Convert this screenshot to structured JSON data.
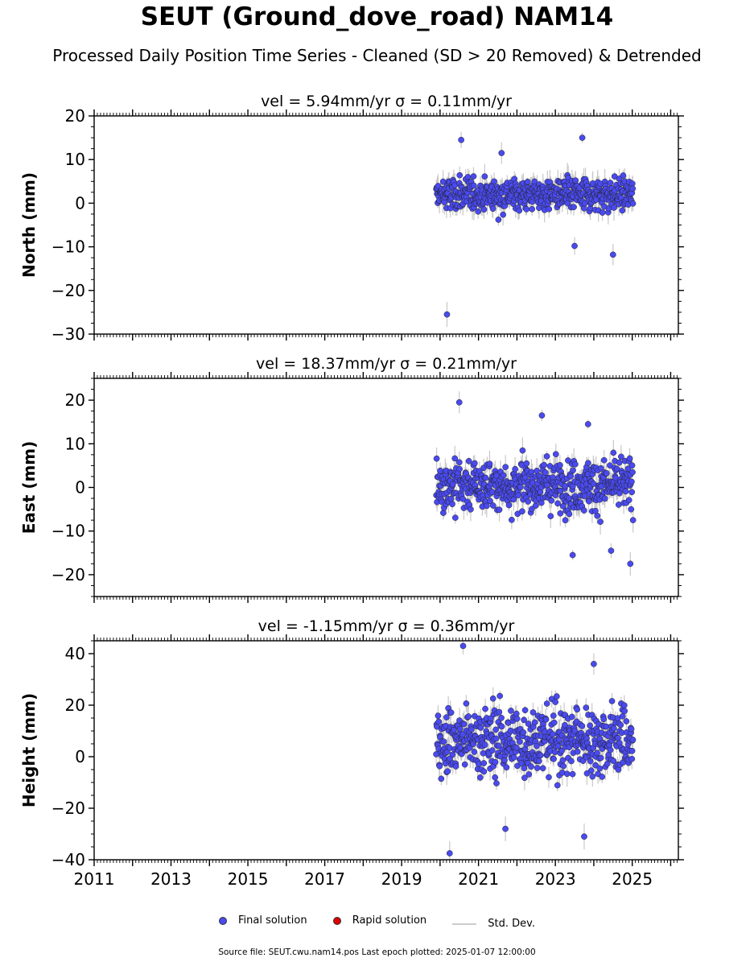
{
  "title": "SEUT (Ground_dove_road) NAM14",
  "subtitle": "Processed Daily Position Time Series - Cleaned (SD > 20 Removed) & Detrended",
  "legend": {
    "final": "Final solution",
    "rapid": "Rapid solution",
    "std": "Std. Dev."
  },
  "footer": "Source file: SEUT.cwu.nam14.pos  Last epoch plotted: 2025-01-07 12:00:00",
  "colors": {
    "final": "#4a4af0",
    "rapid": "#dd0000",
    "std": "#c8c8c8"
  },
  "chart_data": [
    {
      "type": "scatter",
      "component": "North",
      "title": "vel = 5.94mm/yr   σ = 0.11mm/yr",
      "ylabel": "North (mm)",
      "xlim": [
        2011,
        2026.2
      ],
      "ylim": [
        -30,
        20
      ],
      "yticks": [
        -30,
        -20,
        -10,
        0,
        10,
        20
      ],
      "xticks": [
        2011,
        2013,
        2015,
        2017,
        2019,
        2021,
        2023,
        2025
      ],
      "data_span": [
        2019.9,
        2025.02
      ],
      "typical_range": [
        -6,
        10
      ],
      "outliers": [
        [
          2020.18,
          -25.5
        ],
        [
          2020.55,
          14.5
        ],
        [
          2021.6,
          11.5
        ],
        [
          2023.7,
          15.0
        ],
        [
          2024.5,
          -11.8
        ],
        [
          2023.5,
          -9.8
        ]
      ]
    },
    {
      "type": "scatter",
      "component": "East",
      "title": "vel = 18.37mm/yr   σ = 0.21mm/yr",
      "ylabel": "East (mm)",
      "xlim": [
        2011,
        2026.2
      ],
      "ylim": [
        -25,
        25
      ],
      "yticks": [
        -20,
        -10,
        0,
        10,
        20
      ],
      "xticks": [
        2011,
        2013,
        2015,
        2017,
        2019,
        2021,
        2023,
        2025
      ],
      "data_span": [
        2019.9,
        2025.02
      ],
      "typical_range": [
        -12,
        13
      ],
      "outliers": [
        [
          2020.5,
          19.5
        ],
        [
          2022.65,
          16.5
        ],
        [
          2023.85,
          14.5
        ],
        [
          2024.95,
          -17.5
        ],
        [
          2023.45,
          -15.5
        ],
        [
          2024.45,
          -14.5
        ]
      ]
    },
    {
      "type": "scatter",
      "component": "Height",
      "title": "vel = -1.15mm/yr   σ = 0.36mm/yr",
      "ylabel": "Height (mm)",
      "xlim": [
        2011,
        2026.2
      ],
      "ylim": [
        -40,
        45
      ],
      "yticks": [
        -40,
        -20,
        0,
        20,
        40
      ],
      "xticks": [
        2011,
        2013,
        2015,
        2017,
        2019,
        2021,
        2023,
        2025
      ],
      "data_span": [
        2019.9,
        2025.02
      ],
      "typical_range": [
        -22,
        35
      ],
      "outliers": [
        [
          2020.25,
          -37.5
        ],
        [
          2020.6,
          43.0
        ],
        [
          2023.75,
          -31.0
        ],
        [
          2021.7,
          -28.0
        ],
        [
          2024.0,
          36.0
        ]
      ]
    }
  ]
}
